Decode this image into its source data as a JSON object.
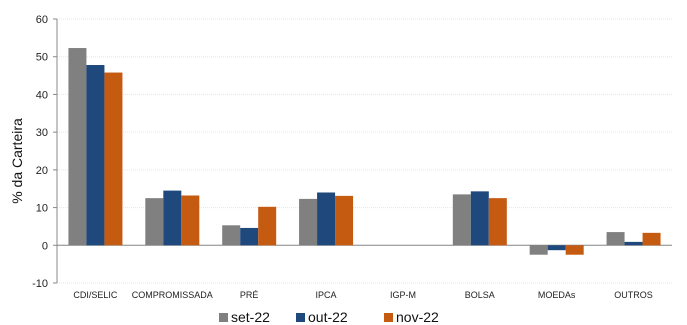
{
  "chart_data": {
    "type": "bar",
    "title": "",
    "xlabel": "",
    "ylabel": "% da Carteira",
    "ylim": [
      -10,
      60
    ],
    "yticks": [
      -10,
      0,
      10,
      20,
      30,
      40,
      50,
      60
    ],
    "categories": [
      "CDI/SELIC",
      "COMPROMISSADA",
      "PRÉ",
      "IPCA",
      "IGP-M",
      "BOLSA",
      "MOEDAs",
      "OUTROS"
    ],
    "series": [
      {
        "name": "set-22",
        "color": "#808080",
        "values": [
          52.3,
          12.5,
          5.3,
          12.3,
          0.0,
          13.5,
          -2.5,
          3.5
        ]
      },
      {
        "name": "out-22",
        "color": "#1F497D",
        "values": [
          47.8,
          14.5,
          4.6,
          14.0,
          0.0,
          14.3,
          -1.3,
          0.9
        ]
      },
      {
        "name": "nov-22",
        "color": "#C55A11",
        "values": [
          45.8,
          13.2,
          10.2,
          13.1,
          0.0,
          12.5,
          -2.5,
          3.3
        ]
      }
    ],
    "grid": true,
    "legend": "bottom"
  }
}
